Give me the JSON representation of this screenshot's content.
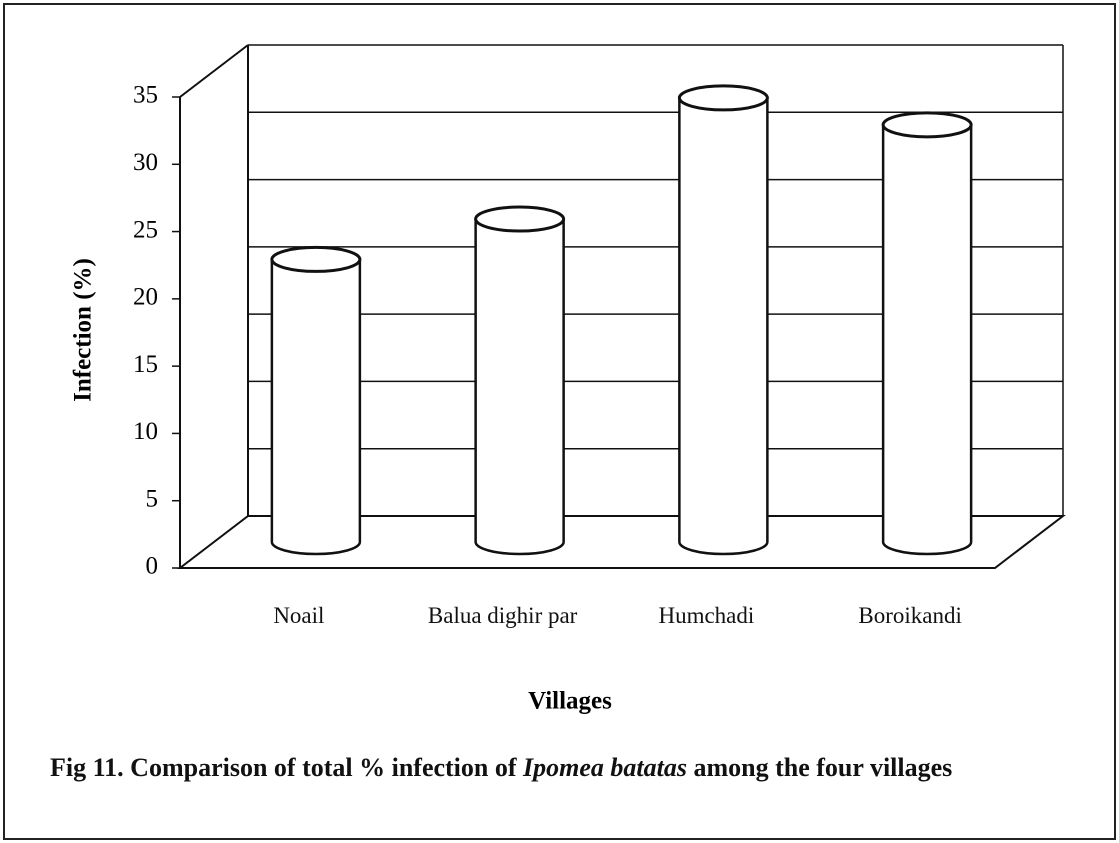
{
  "chart_data": {
    "type": "bar3d",
    "title_parts": [
      "Fig 11. Comparison of total % infection of ",
      "Ipomea batatas",
      " among the four villages"
    ],
    "xlabel": "Villages",
    "ylabel": "Infection (%)",
    "categories": [
      "Noail",
      "Balua dighir par",
      "Humchadi",
      "Boroikandi"
    ],
    "values": [
      21,
      24,
      33,
      31
    ],
    "color": "#ffffff",
    "ylim": [
      0,
      35
    ],
    "yticks": [
      0,
      5,
      10,
      15,
      20,
      25,
      30,
      35
    ],
    "grid": true
  }
}
